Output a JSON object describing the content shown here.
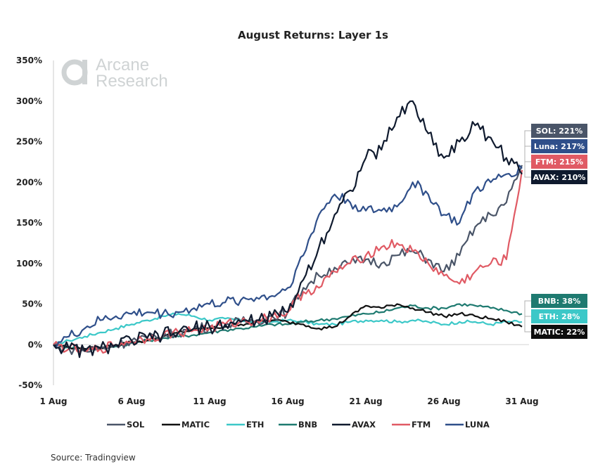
{
  "chart_data": {
    "type": "line",
    "title": "August Returns: Layer 1s",
    "xlabel": "",
    "ylabel": "",
    "ylim": [
      -50,
      350
    ],
    "yticks": [
      "350%",
      "300%",
      "250%",
      "200%",
      "150%",
      "100%",
      "50%",
      "0%",
      "-50%"
    ],
    "ytick_values": [
      350,
      300,
      250,
      200,
      150,
      100,
      50,
      0,
      -50
    ],
    "xticks": [
      "1 Aug",
      "6 Aug",
      "11 Aug",
      "16 Aug",
      "21 Aug",
      "26 Aug",
      "31 Aug"
    ],
    "xtick_days": [
      1,
      6,
      11,
      16,
      21,
      26,
      31
    ],
    "x_days": [
      1,
      2,
      3,
      4,
      5,
      6,
      7,
      8,
      9,
      10,
      11,
      12,
      13,
      14,
      15,
      16,
      17,
      18,
      19,
      20,
      21,
      22,
      23,
      24,
      25,
      26,
      27,
      28,
      29,
      30,
      31
    ],
    "legend_position": "bottom",
    "series": [
      {
        "name": "SOL",
        "color": "#4a5568",
        "end_label": "SOL: 221%",
        "values": [
          0,
          -5,
          -8,
          -5,
          0,
          5,
          8,
          10,
          15,
          20,
          22,
          25,
          28,
          30,
          35,
          40,
          70,
          85,
          95,
          100,
          105,
          100,
          110,
          115,
          105,
          90,
          110,
          145,
          160,
          175,
          221
        ]
      },
      {
        "name": "MATIC",
        "color": "#111111",
        "end_label": "MATIC: 22%",
        "values": [
          0,
          -3,
          -5,
          -4,
          0,
          3,
          5,
          10,
          15,
          18,
          20,
          22,
          25,
          28,
          30,
          28,
          25,
          20,
          22,
          35,
          48,
          45,
          50,
          45,
          40,
          35,
          38,
          35,
          32,
          28,
          22
        ]
      },
      {
        "name": "ETH",
        "color": "#3cc8c8",
        "end_label": "ETH: 28%",
        "values": [
          0,
          5,
          10,
          15,
          20,
          25,
          30,
          35,
          38,
          35,
          30,
          32,
          30,
          28,
          28,
          30,
          28,
          25,
          25,
          28,
          30,
          30,
          28,
          30,
          28,
          25,
          28,
          28,
          25,
          28,
          28
        ]
      },
      {
        "name": "BNB",
        "color": "#1e7a70",
        "end_label": "BNB: 38%",
        "values": [
          0,
          -3,
          -5,
          -5,
          -2,
          2,
          5,
          8,
          10,
          12,
          15,
          18,
          20,
          22,
          25,
          25,
          28,
          30,
          32,
          35,
          38,
          40,
          45,
          48,
          45,
          45,
          50,
          48,
          45,
          42,
          38
        ]
      },
      {
        "name": "AVAX",
        "color": "#0f1a2e",
        "end_label": "AVAX: 210%",
        "values": [
          0,
          -5,
          -8,
          -5,
          0,
          5,
          8,
          12,
          15,
          20,
          22,
          25,
          28,
          30,
          35,
          40,
          80,
          120,
          160,
          190,
          230,
          240,
          280,
          300,
          260,
          230,
          250,
          270,
          255,
          230,
          210
        ]
      },
      {
        "name": "FTM",
        "color": "#e05a64",
        "end_label": "FTM: 215%",
        "values": [
          0,
          -5,
          -8,
          -5,
          0,
          5,
          8,
          12,
          15,
          18,
          20,
          25,
          28,
          30,
          35,
          40,
          65,
          70,
          90,
          100,
          110,
          120,
          125,
          115,
          100,
          85,
          75,
          90,
          100,
          105,
          215
        ]
      },
      {
        "name": "LUNA",
        "color": "#2f4f8a",
        "end_label": "Luna: 217%",
        "values": [
          0,
          10,
          20,
          30,
          35,
          38,
          40,
          38,
          40,
          45,
          50,
          52,
          55,
          58,
          60,
          70,
          110,
          160,
          185,
          175,
          165,
          165,
          170,
          200,
          185,
          160,
          150,
          190,
          200,
          210,
          217
        ]
      }
    ],
    "end_labels_order_top": [
      "SOL",
      "LUNA",
      "FTM",
      "AVAX"
    ],
    "end_labels_order_bottom": [
      "BNB",
      "ETH",
      "MATIC"
    ],
    "end_label_colors": {
      "SOL": "#4a5568",
      "LUNA": "#2f4f8a",
      "FTM": "#e05a64",
      "AVAX": "#0f1a2e",
      "BNB": "#1e7a70",
      "ETH": "#3cc8c8",
      "MATIC": "#0d0d0d"
    }
  },
  "watermark": {
    "line1": "Arcane",
    "line2": "Research"
  },
  "source": "Source: Tradingview"
}
